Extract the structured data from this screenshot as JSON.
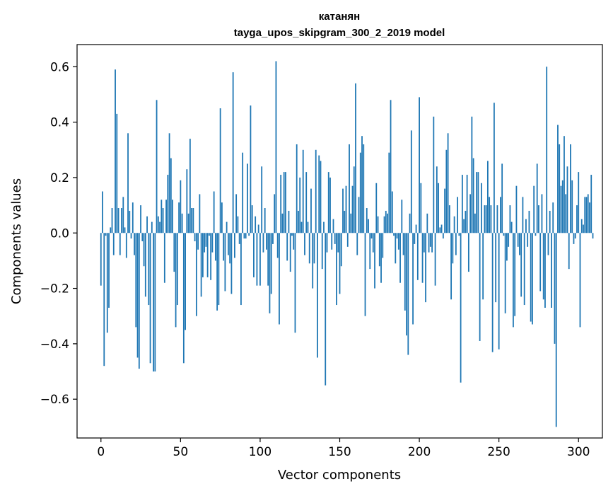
{
  "chart_data": {
    "type": "bar",
    "title": "катанян",
    "subtitle": "tayga_upos_skipgram_300_2_2019 model",
    "xlabel": "Vector components",
    "ylabel": "Components values",
    "xlim": [
      -15,
      315
    ],
    "ylim": [
      -0.74,
      0.68
    ],
    "xticks": [
      0,
      50,
      100,
      150,
      200,
      250,
      300
    ],
    "xtick_labels": [
      "0",
      "50",
      "100",
      "150",
      "200",
      "250",
      "300"
    ],
    "yticks": [
      -0.6,
      -0.4,
      -0.2,
      0.0,
      0.2,
      0.4,
      0.6
    ],
    "ytick_labels": [
      "−0.6",
      "−0.4",
      "−0.2",
      "0.0",
      "0.2",
      "0.4",
      "0.6"
    ],
    "bar_color": "#1f77b4",
    "grid": false,
    "values": [
      -0.19,
      0.15,
      -0.48,
      -0.01,
      -0.36,
      -0.27,
      0.02,
      0.09,
      -0.08,
      0.59,
      0.43,
      0.09,
      -0.08,
      0.09,
      0.13,
      0.02,
      -0.09,
      0.36,
      0.08,
      -0.02,
      0.11,
      -0.08,
      -0.34,
      -0.45,
      -0.49,
      0.1,
      -0.03,
      -0.12,
      -0.23,
      0.06,
      -0.26,
      -0.47,
      0.04,
      -0.5,
      -0.5,
      0.48,
      0.06,
      0.04,
      0.12,
      0.09,
      -0.18,
      0.12,
      0.21,
      0.36,
      0.27,
      0.12,
      -0.14,
      -0.34,
      -0.26,
      0.11,
      0.19,
      0.07,
      -0.47,
      -0.35,
      0.23,
      0.07,
      0.34,
      0.09,
      0.09,
      -0.03,
      -0.3,
      -0.06,
      0.14,
      -0.23,
      -0.16,
      -0.07,
      -0.05,
      -0.16,
      -0.01,
      -0.17,
      -0.07,
      0.15,
      -0.1,
      -0.28,
      -0.26,
      0.45,
      0.11,
      -0.1,
      -0.21,
      0.04,
      -0.08,
      -0.11,
      -0.22,
      0.58,
      -0.09,
      0.14,
      0.06,
      -0.04,
      -0.26,
      0.29,
      -0.02,
      -0.02,
      0.25,
      -0.01,
      0.46,
      0.1,
      -0.16,
      0.06,
      -0.19,
      0.03,
      -0.19,
      0.24,
      -0.07,
      0.09,
      -0.06,
      -0.19,
      -0.29,
      -0.22,
      -0.04,
      0.14,
      0.62,
      -0.09,
      -0.33,
      0.21,
      0.07,
      0.22,
      0.22,
      -0.1,
      0.08,
      -0.14,
      -0.01,
      -0.06,
      -0.36,
      0.32,
      0.08,
      0.2,
      0.04,
      0.3,
      -0.08,
      0.22,
      0.04,
      -0.11,
      0.16,
      -0.2,
      -0.11,
      0.3,
      -0.45,
      0.28,
      0.26,
      -0.13,
      0.04,
      -0.55,
      -0.07,
      0.22,
      0.2,
      -0.06,
      0.05,
      -0.04,
      -0.26,
      -0.07,
      -0.22,
      -0.12,
      0.16,
      0.08,
      0.17,
      -0.05,
      0.32,
      0.07,
      0.17,
      0.24,
      0.54,
      -0.08,
      0.13,
      0.29,
      0.35,
      0.32,
      -0.3,
      0.09,
      0.05,
      -0.13,
      -0.02,
      -0.07,
      -0.2,
      0.18,
      0.06,
      -0.12,
      -0.18,
      -0.09,
      0.06,
      0.08,
      0.07,
      0.29,
      0.48,
      0.15,
      -0.01,
      -0.11,
      -0.02,
      -0.06,
      -0.18,
      0.12,
      -0.08,
      -0.28,
      -0.37,
      -0.44,
      0.07,
      0.37,
      -0.33,
      -0.04,
      0.03,
      -0.17,
      0.49,
      0.18,
      -0.18,
      -0.07,
      -0.25,
      0.07,
      -0.07,
      -0.05,
      -0.07,
      0.42,
      -0.19,
      0.24,
      0.18,
      0.02,
      0.03,
      -0.02,
      0.16,
      0.3,
      0.36,
      0.1,
      -0.24,
      -0.11,
      0.06,
      -0.08,
      0.13,
      -0.01,
      -0.54,
      0.21,
      0.05,
      0.08,
      0.21,
      -0.14,
      0.14,
      0.42,
      0.27,
      0.07,
      0.22,
      0.22,
      -0.39,
      0.18,
      -0.24,
      0.1,
      0.1,
      0.26,
      0.13,
      0.1,
      -0.43,
      0.47,
      -0.25,
      0.1,
      -0.42,
      0.13,
      0.25,
      -0.01,
      -0.29,
      -0.1,
      -0.05,
      0.1,
      0.04,
      -0.34,
      -0.3,
      0.17,
      -0.05,
      -0.08,
      -0.23,
      0.13,
      -0.26,
      0.05,
      -0.05,
      0.08,
      -0.32,
      -0.33,
      0.17,
      -0.01,
      0.25,
      0.1,
      -0.21,
      0.14,
      -0.24,
      -0.27,
      0.6,
      -0.08,
      0.08,
      -0.27,
      0.11,
      -0.4,
      -0.7,
      0.39,
      0.32,
      0.17,
      0.19,
      0.35,
      0.14,
      0.24,
      -0.13,
      0.32,
      0.19,
      -0.04,
      -0.02,
      0.1,
      0.22,
      -0.34,
      0.05,
      0.03,
      0.13,
      0.13,
      0.14,
      0.11,
      0.21,
      -0.02
    ]
  }
}
